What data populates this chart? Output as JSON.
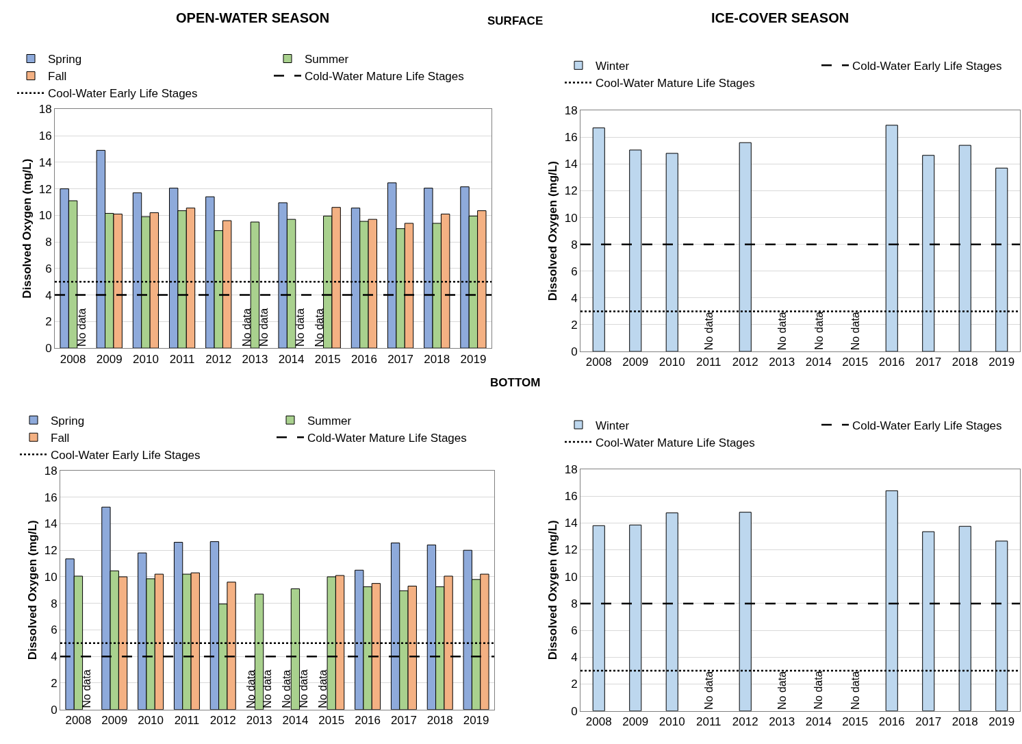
{
  "chart_data": [
    {
      "type": "bar",
      "title": "OPEN-WATER SEASON",
      "ylabel": "Dissolved Oxygen (mg/L)",
      "categories": [
        "2008",
        "2009",
        "2010",
        "2011",
        "2012",
        "2013",
        "2014",
        "2015",
        "2016",
        "2017",
        "2018",
        "2019"
      ],
      "series": [
        {
          "name": "Spring",
          "color": "#8eaadb",
          "values": [
            12.0,
            14.9,
            11.7,
            12.05,
            11.4,
            null,
            10.95,
            null,
            10.55,
            12.45,
            12.05,
            12.15
          ]
        },
        {
          "name": "Summer",
          "color": "#a9d18e",
          "values": [
            11.1,
            10.15,
            9.9,
            10.35,
            8.85,
            9.5,
            9.7,
            9.95,
            9.55,
            9.0,
            9.4,
            9.95
          ]
        },
        {
          "name": "Fall",
          "color": "#f4b183",
          "values": [
            null,
            10.1,
            10.2,
            10.55,
            9.6,
            null,
            null,
            10.6,
            9.7,
            9.4,
            10.1,
            10.35
          ]
        }
      ],
      "ref_lines": [
        {
          "axis": "y",
          "value": 4,
          "label": "Cold-Water Mature Life Stages",
          "color": "#000000",
          "line_style": "dashed"
        },
        {
          "axis": "y",
          "value": 5,
          "label": "Cool-Water Early Life Stages",
          "color": "#000000",
          "line_style": "dotted"
        }
      ],
      "subtitle": "SURFACE",
      "annotations": [
        "No data",
        "No data",
        "No data",
        "No data",
        "No data"
      ],
      "ylim": [
        0,
        18
      ],
      "yticks": [
        0,
        2,
        4,
        6,
        8,
        10,
        12,
        14,
        16,
        18
      ],
      "grid": "y",
      "legend": "top"
    },
    {
      "type": "bar",
      "title": "ICE-COVER SEASON",
      "ylabel": "Dissolved Oxygen (mg/L)",
      "categories": [
        "2008",
        "2009",
        "2010",
        "2011",
        "2012",
        "2013",
        "2014",
        "2015",
        "2016",
        "2017",
        "2018",
        "2019"
      ],
      "series": [
        {
          "name": "Winter",
          "color": "#bdd7ee",
          "values": [
            16.7,
            15.05,
            14.8,
            null,
            15.6,
            null,
            null,
            null,
            16.9,
            14.65,
            15.4,
            13.7
          ]
        }
      ],
      "ref_lines": [
        {
          "axis": "y",
          "value": 8,
          "label": "Cold-Water Early Life Stages",
          "color": "#000000",
          "line_style": "dashed"
        },
        {
          "axis": "y",
          "value": 3,
          "label": "Cool-Water Mature Life Stages",
          "color": "#000000",
          "line_style": "dotted"
        }
      ],
      "annotations": [
        "No data",
        "No data",
        "No data",
        "No data"
      ],
      "ylim": [
        0,
        18
      ],
      "yticks": [
        0,
        2,
        4,
        6,
        8,
        10,
        12,
        14,
        16,
        18
      ],
      "grid": "y",
      "legend": "top"
    },
    {
      "type": "bar",
      "ylabel": "Dissolved Oxygen (mg/L)",
      "categories": [
        "2008",
        "2009",
        "2010",
        "2011",
        "2012",
        "2013",
        "2014",
        "2015",
        "2016",
        "2017",
        "2018",
        "2019"
      ],
      "series": [
        {
          "name": "Spring",
          "color": "#8eaadb",
          "values": [
            11.35,
            15.25,
            11.8,
            12.6,
            12.65,
            null,
            null,
            null,
            10.5,
            12.55,
            12.4,
            12.0
          ]
        },
        {
          "name": "Summer",
          "color": "#a9d18e",
          "values": [
            10.05,
            10.45,
            9.85,
            10.2,
            7.95,
            8.7,
            9.1,
            10.0,
            9.25,
            8.95,
            9.25,
            9.8
          ]
        },
        {
          "name": "Fall",
          "color": "#f4b183",
          "values": [
            null,
            10.0,
            10.2,
            10.3,
            9.6,
            null,
            null,
            10.1,
            9.5,
            9.3,
            10.05,
            10.2
          ]
        }
      ],
      "ref_lines": [
        {
          "axis": "y",
          "value": 4,
          "label": "Cold-Water Mature Life Stages",
          "color": "#000000",
          "line_style": "dashed"
        },
        {
          "axis": "y",
          "value": 5,
          "label": "Cool-Water Early Life Stages",
          "color": "#000000",
          "line_style": "dotted"
        }
      ],
      "subtitle": "BOTTOM",
      "annotations": [
        "No data",
        "No data",
        "No data",
        "No data",
        "No data",
        "No data"
      ],
      "ylim": [
        0,
        18
      ],
      "yticks": [
        0,
        2,
        4,
        6,
        8,
        10,
        12,
        14,
        16,
        18
      ],
      "grid": "y",
      "legend": "top"
    },
    {
      "type": "bar",
      "ylabel": "Dissolved Oxygen (mg/L)",
      "categories": [
        "2008",
        "2009",
        "2010",
        "2011",
        "2012",
        "2013",
        "2014",
        "2015",
        "2016",
        "2017",
        "2018",
        "2019"
      ],
      "series": [
        {
          "name": "Winter",
          "color": "#bdd7ee",
          "values": [
            13.8,
            13.85,
            14.75,
            null,
            14.8,
            null,
            null,
            null,
            16.4,
            13.35,
            13.75,
            12.65
          ]
        }
      ],
      "ref_lines": [
        {
          "axis": "y",
          "value": 8,
          "label": "Cold-Water Early Life Stages",
          "color": "#000000",
          "line_style": "dashed"
        },
        {
          "axis": "y",
          "value": 3,
          "label": "Cool-Water Mature Life Stages",
          "color": "#000000",
          "line_style": "dotted"
        }
      ],
      "annotations": [
        "No data",
        "No data",
        "No data",
        "No data"
      ],
      "ylim": [
        0,
        18
      ],
      "yticks": [
        0,
        2,
        4,
        6,
        8,
        10,
        12,
        14,
        16,
        18
      ],
      "grid": "y",
      "legend": "top"
    }
  ]
}
